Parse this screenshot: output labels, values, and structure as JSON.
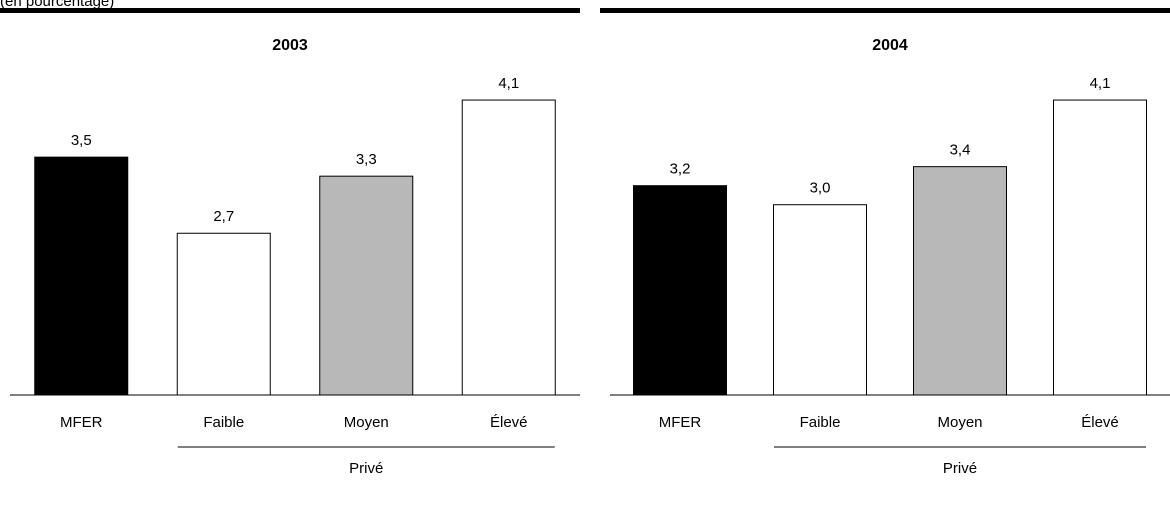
{
  "note": "(en pourcentage)",
  "chart_data": [
    {
      "type": "bar",
      "title": "2003",
      "categories": [
        "MFER",
        "Faible",
        "Moyen",
        "Élevé"
      ],
      "values": [
        3.5,
        2.7,
        3.3,
        4.1
      ],
      "value_labels": [
        "3,5",
        "2,7",
        "3,3",
        "4,1"
      ],
      "colors": [
        "#000000",
        "#ffffff",
        "#b8b8b8",
        "#ffffff"
      ],
      "group_label": "Privé",
      "ylim": [
        1,
        4.5
      ]
    },
    {
      "type": "bar",
      "title": "2004",
      "categories": [
        "MFER",
        "Faible",
        "Moyen",
        "Élevé"
      ],
      "values": [
        3.2,
        3.0,
        3.4,
        4.1
      ],
      "value_labels": [
        "3,2",
        "3,0",
        "3,4",
        "4,1"
      ],
      "colors": [
        "#000000",
        "#ffffff",
        "#b8b8b8",
        "#ffffff"
      ],
      "group_label": "Privé",
      "ylim": [
        1,
        4.5
      ]
    }
  ]
}
